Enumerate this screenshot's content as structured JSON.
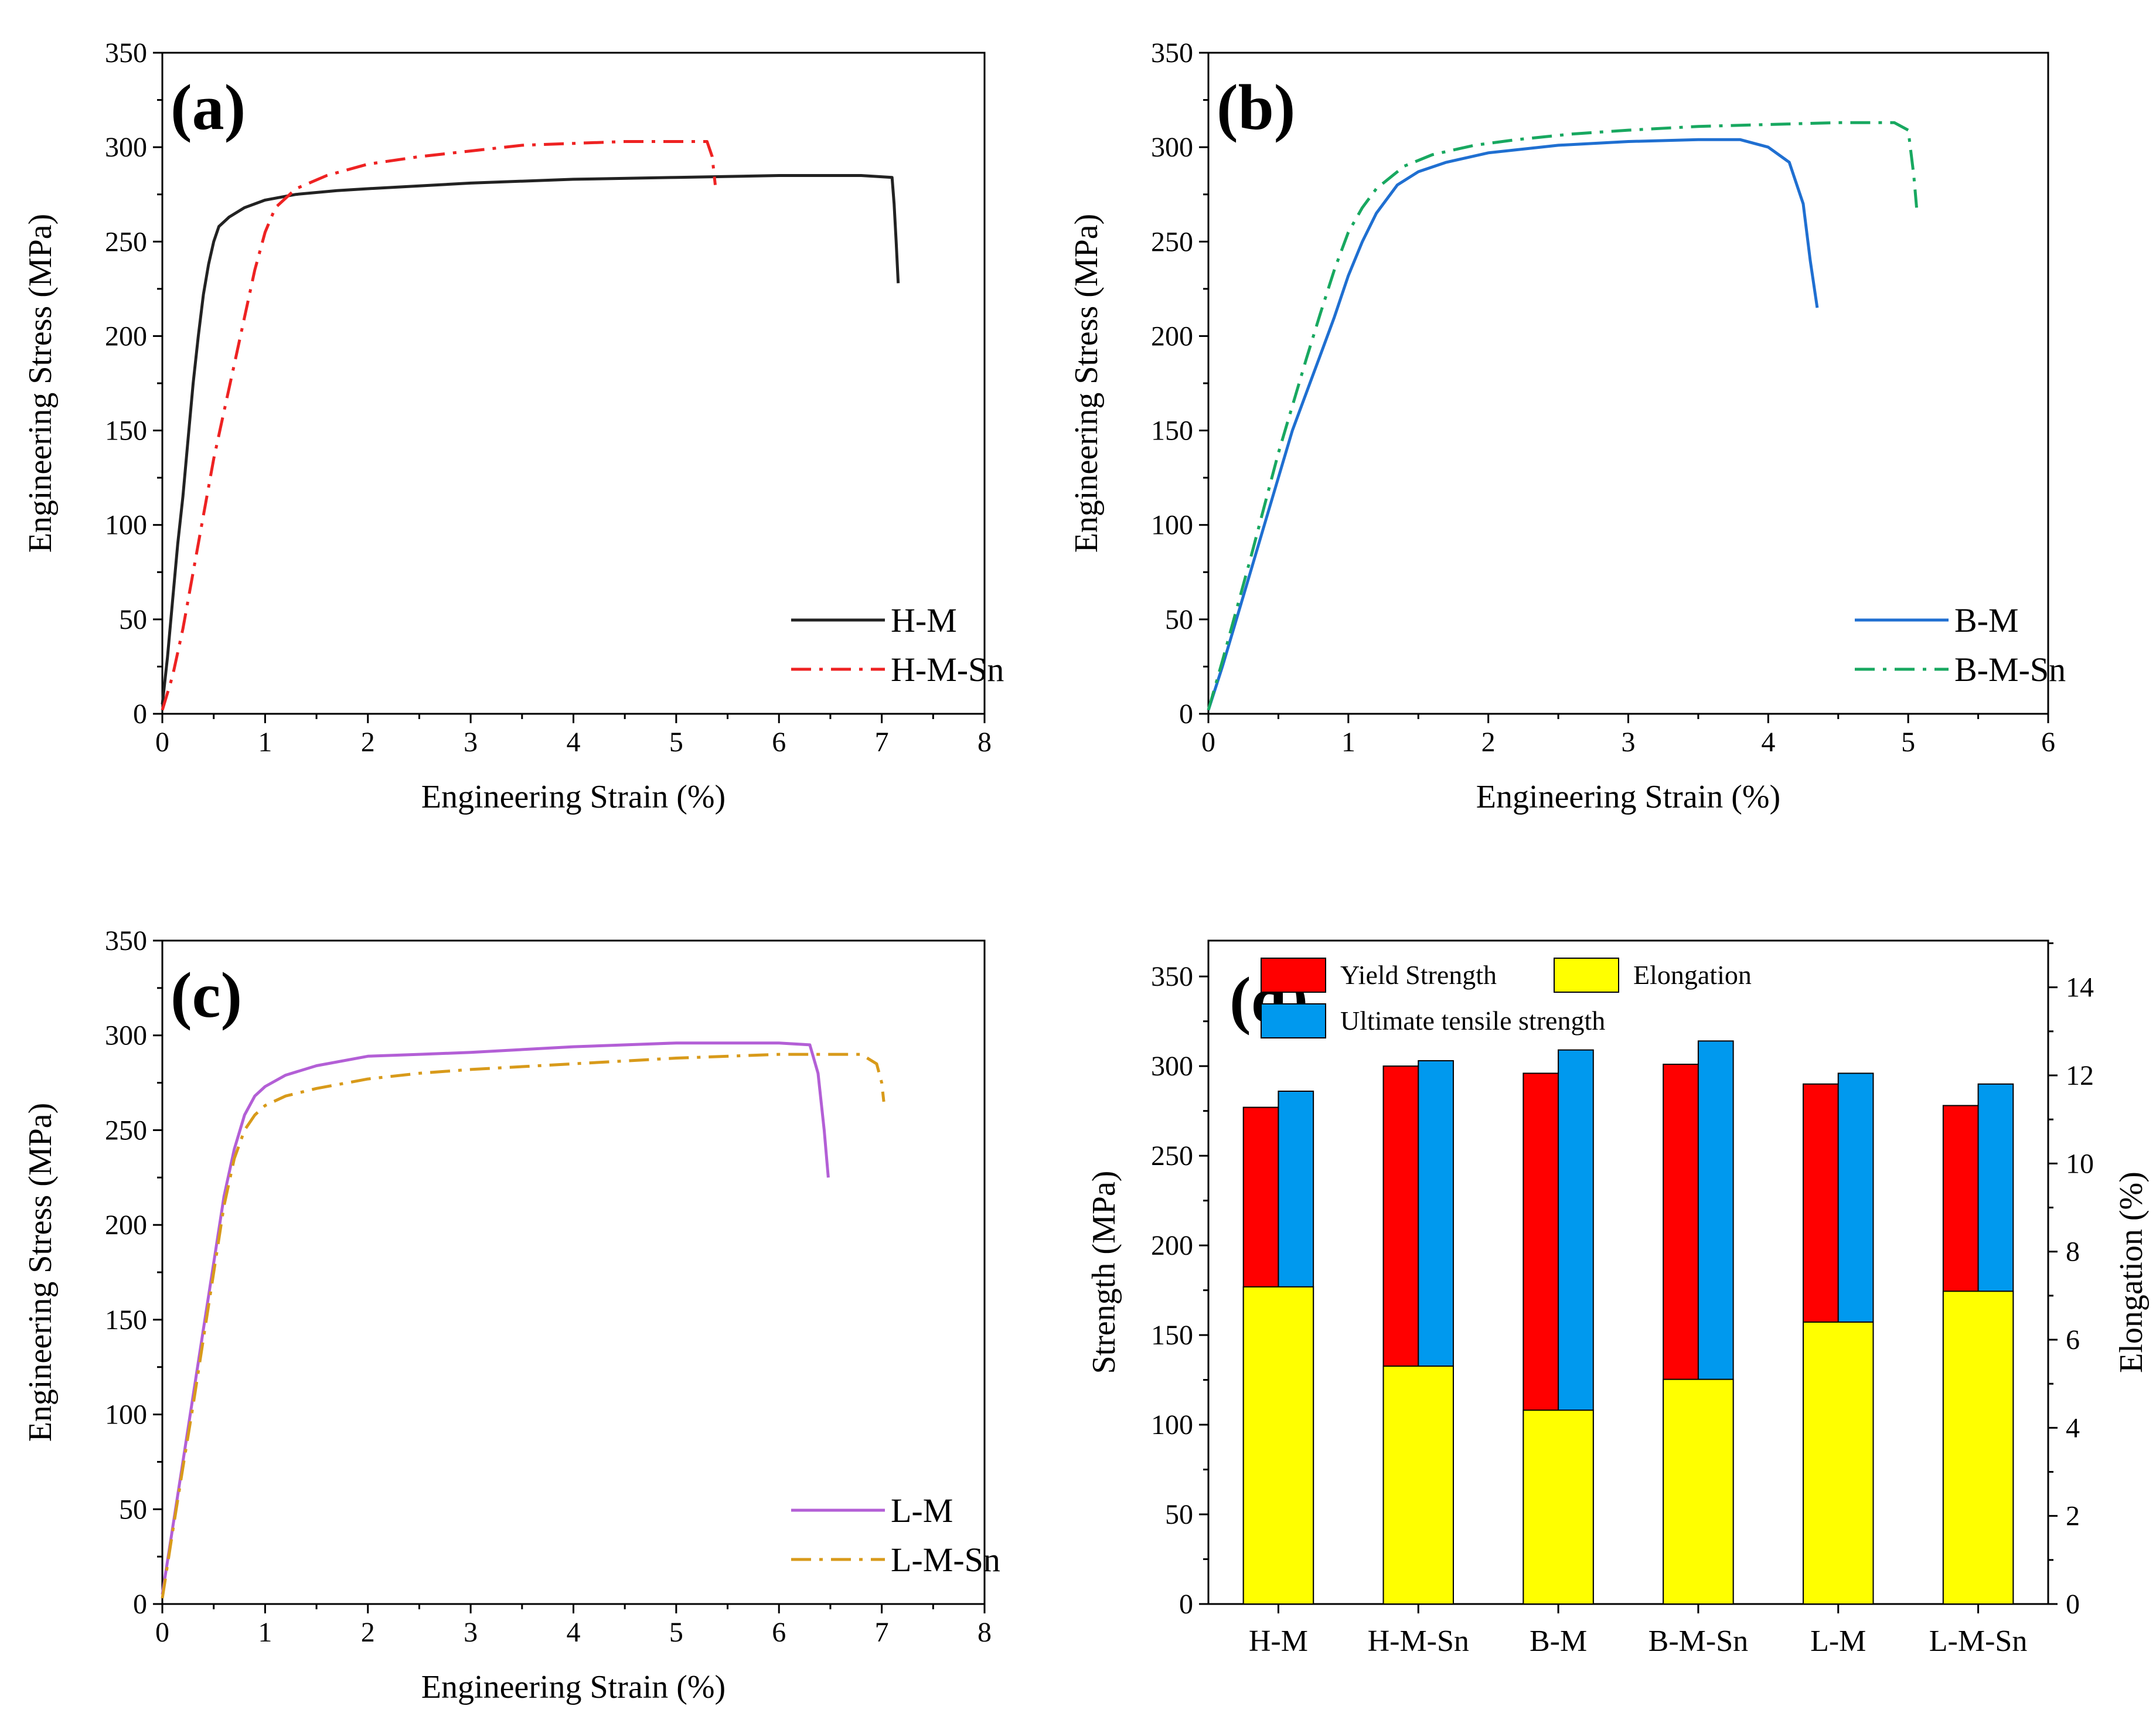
{
  "chart_data": [
    {
      "id": "a",
      "type": "line",
      "panel_label": "(a)",
      "xlabel": "Engineering Strain (%)",
      "ylabel": "Engineering Stress (MPa)",
      "xlim": [
        0,
        8
      ],
      "ylim": [
        0,
        350
      ],
      "xticks": [
        "0",
        "1",
        "2",
        "3",
        "4",
        "5",
        "6",
        "7",
        "8"
      ],
      "yticks": [
        "0",
        "50",
        "100",
        "150",
        "200",
        "250",
        "300",
        "350"
      ],
      "legend_position": "bottom-right",
      "series": [
        {
          "name": "H-M",
          "color": "#222222",
          "style": "solid",
          "points": [
            [
              0,
              5
            ],
            [
              0.05,
              30
            ],
            [
              0.1,
              60
            ],
            [
              0.15,
              90
            ],
            [
              0.2,
              115
            ],
            [
              0.25,
              145
            ],
            [
              0.3,
              175
            ],
            [
              0.35,
              200
            ],
            [
              0.4,
              222
            ],
            [
              0.45,
              238
            ],
            [
              0.5,
              250
            ],
            [
              0.55,
              258
            ],
            [
              0.65,
              263
            ],
            [
              0.8,
              268
            ],
            [
              1,
              272
            ],
            [
              1.3,
              275
            ],
            [
              1.7,
              277
            ],
            [
              2,
              278
            ],
            [
              3,
              281
            ],
            [
              4,
              283
            ],
            [
              5,
              284
            ],
            [
              6,
              285
            ],
            [
              6.8,
              285
            ],
            [
              7.1,
              284
            ],
            [
              7.12,
              270
            ],
            [
              7.14,
              250
            ],
            [
              7.16,
              228
            ]
          ]
        },
        {
          "name": "H-M-Sn",
          "color": "#ee2222",
          "style": "dashdot",
          "points": [
            [
              0,
              2
            ],
            [
              0.1,
              20
            ],
            [
              0.2,
              45
            ],
            [
              0.3,
              75
            ],
            [
              0.4,
              105
            ],
            [
              0.5,
              135
            ],
            [
              0.6,
              160
            ],
            [
              0.7,
              185
            ],
            [
              0.8,
              210
            ],
            [
              0.9,
              235
            ],
            [
              1,
              255
            ],
            [
              1.1,
              268
            ],
            [
              1.3,
              278
            ],
            [
              1.6,
              285
            ],
            [
              2,
              291
            ],
            [
              2.5,
              295
            ],
            [
              3,
              298
            ],
            [
              3.5,
              301
            ],
            [
              4,
              302
            ],
            [
              4.5,
              303
            ],
            [
              5,
              303
            ],
            [
              5.3,
              303
            ],
            [
              5.35,
              295
            ],
            [
              5.38,
              280
            ]
          ]
        }
      ]
    },
    {
      "id": "b",
      "type": "line",
      "panel_label": "(b)",
      "xlabel": "Engineering Strain (%)",
      "ylabel": "Engineering Stress (MPa)",
      "xlim": [
        0,
        6
      ],
      "ylim": [
        0,
        350
      ],
      "xticks": [
        "0",
        "1",
        "2",
        "3",
        "4",
        "5",
        "6"
      ],
      "yticks": [
        "0",
        "50",
        "100",
        "150",
        "200",
        "250",
        "300",
        "350"
      ],
      "legend_position": "bottom-right",
      "series": [
        {
          "name": "B-M",
          "color": "#1f6fd1",
          "style": "solid",
          "points": [
            [
              0,
              2
            ],
            [
              0.1,
              25
            ],
            [
              0.2,
              50
            ],
            [
              0.3,
              75
            ],
            [
              0.4,
              100
            ],
            [
              0.5,
              125
            ],
            [
              0.6,
              150
            ],
            [
              0.7,
              170
            ],
            [
              0.8,
              190
            ],
            [
              0.9,
              210
            ],
            [
              1,
              232
            ],
            [
              1.1,
              250
            ],
            [
              1.2,
              265
            ],
            [
              1.35,
              280
            ],
            [
              1.5,
              287
            ],
            [
              1.7,
              292
            ],
            [
              2,
              297
            ],
            [
              2.5,
              301
            ],
            [
              3,
              303
            ],
            [
              3.5,
              304
            ],
            [
              3.8,
              304
            ],
            [
              4,
              300
            ],
            [
              4.15,
              292
            ],
            [
              4.25,
              270
            ],
            [
              4.3,
              240
            ],
            [
              4.35,
              215
            ]
          ]
        },
        {
          "name": "B-M-Sn",
          "color": "#18a860",
          "style": "dashdot",
          "points": [
            [
              0,
              2
            ],
            [
              0.1,
              28
            ],
            [
              0.2,
              55
            ],
            [
              0.3,
              82
            ],
            [
              0.4,
              110
            ],
            [
              0.5,
              138
            ],
            [
              0.6,
              163
            ],
            [
              0.7,
              188
            ],
            [
              0.8,
              212
            ],
            [
              0.9,
              235
            ],
            [
              1,
              255
            ],
            [
              1.1,
              268
            ],
            [
              1.2,
              278
            ],
            [
              1.4,
              290
            ],
            [
              1.6,
              296
            ],
            [
              1.9,
              301
            ],
            [
              2.2,
              304
            ],
            [
              2.6,
              307
            ],
            [
              3,
              309
            ],
            [
              3.5,
              311
            ],
            [
              4,
              312
            ],
            [
              4.5,
              313
            ],
            [
              4.9,
              313
            ],
            [
              5,
              309
            ],
            [
              5.04,
              285
            ],
            [
              5.06,
              268
            ]
          ]
        }
      ]
    },
    {
      "id": "c",
      "type": "line",
      "panel_label": "(c)",
      "xlabel": "Engineering Strain (%)",
      "ylabel": "Engineering Stress (MPa)",
      "xlim": [
        0,
        8
      ],
      "ylim": [
        0,
        350
      ],
      "xticks": [
        "0",
        "1",
        "2",
        "3",
        "4",
        "5",
        "6",
        "7",
        "8"
      ],
      "yticks": [
        "0",
        "50",
        "100",
        "150",
        "200",
        "250",
        "300",
        "350"
      ],
      "legend_position": "bottom-right",
      "series": [
        {
          "name": "L-M",
          "color": "#b35fd6",
          "style": "solid",
          "points": [
            [
              0,
              5
            ],
            [
              0.1,
              40
            ],
            [
              0.2,
              75
            ],
            [
              0.3,
              110
            ],
            [
              0.4,
              145
            ],
            [
              0.5,
              180
            ],
            [
              0.6,
              215
            ],
            [
              0.7,
              240
            ],
            [
              0.8,
              258
            ],
            [
              0.9,
              268
            ],
            [
              1,
              273
            ],
            [
              1.2,
              279
            ],
            [
              1.5,
              284
            ],
            [
              2,
              289
            ],
            [
              2.5,
              290
            ],
            [
              3,
              291
            ],
            [
              4,
              294
            ],
            [
              5,
              296
            ],
            [
              6,
              296
            ],
            [
              6.3,
              295
            ],
            [
              6.38,
              280
            ],
            [
              6.44,
              250
            ],
            [
              6.48,
              225
            ]
          ]
        },
        {
          "name": "L-M-Sn",
          "color": "#d89a1a",
          "style": "dashdot",
          "points": [
            [
              0,
              3
            ],
            [
              0.1,
              38
            ],
            [
              0.2,
              72
            ],
            [
              0.3,
              105
            ],
            [
              0.4,
              140
            ],
            [
              0.5,
              175
            ],
            [
              0.6,
              210
            ],
            [
              0.7,
              235
            ],
            [
              0.8,
              250
            ],
            [
              0.9,
              258
            ],
            [
              1,
              263
            ],
            [
              1.2,
              268
            ],
            [
              1.5,
              272
            ],
            [
              2,
              277
            ],
            [
              2.5,
              280
            ],
            [
              3,
              282
            ],
            [
              4,
              285
            ],
            [
              5,
              288
            ],
            [
              6,
              290
            ],
            [
              6.8,
              290
            ],
            [
              6.95,
              285
            ],
            [
              7,
              275
            ],
            [
              7.02,
              265
            ]
          ]
        }
      ]
    },
    {
      "id": "d",
      "type": "bar",
      "panel_label": "(d)",
      "ylabel": "Strength (MPa)",
      "y2label": "Elongation (%)",
      "ylim": [
        0,
        370
      ],
      "y2lim": [
        0,
        15.06
      ],
      "yticks": [
        "0",
        "50",
        "100",
        "150",
        "200",
        "250",
        "300",
        "350"
      ],
      "y2ticks": [
        "0",
        "2",
        "4",
        "6",
        "8",
        "10",
        "12",
        "14"
      ],
      "categories": [
        "H-M",
        "H-M-Sn",
        "B-M",
        "B-M-Sn",
        "L-M",
        "L-M-Sn"
      ],
      "legend_position": "top",
      "series": [
        {
          "name": "Yield Strength",
          "color": "#ff0000",
          "axis": "left",
          "values": [
            277,
            300,
            296,
            301,
            290,
            278
          ]
        },
        {
          "name": "Ultimate tensile strength",
          "color": "#0099ee",
          "axis": "left",
          "values": [
            286,
            303,
            309,
            314,
            296,
            290
          ]
        },
        {
          "name": "Elongation",
          "color": "#ffff00",
          "axis": "right",
          "values": [
            7.2,
            5.4,
            4.4,
            5.1,
            6.4,
            7.1
          ]
        }
      ]
    }
  ]
}
